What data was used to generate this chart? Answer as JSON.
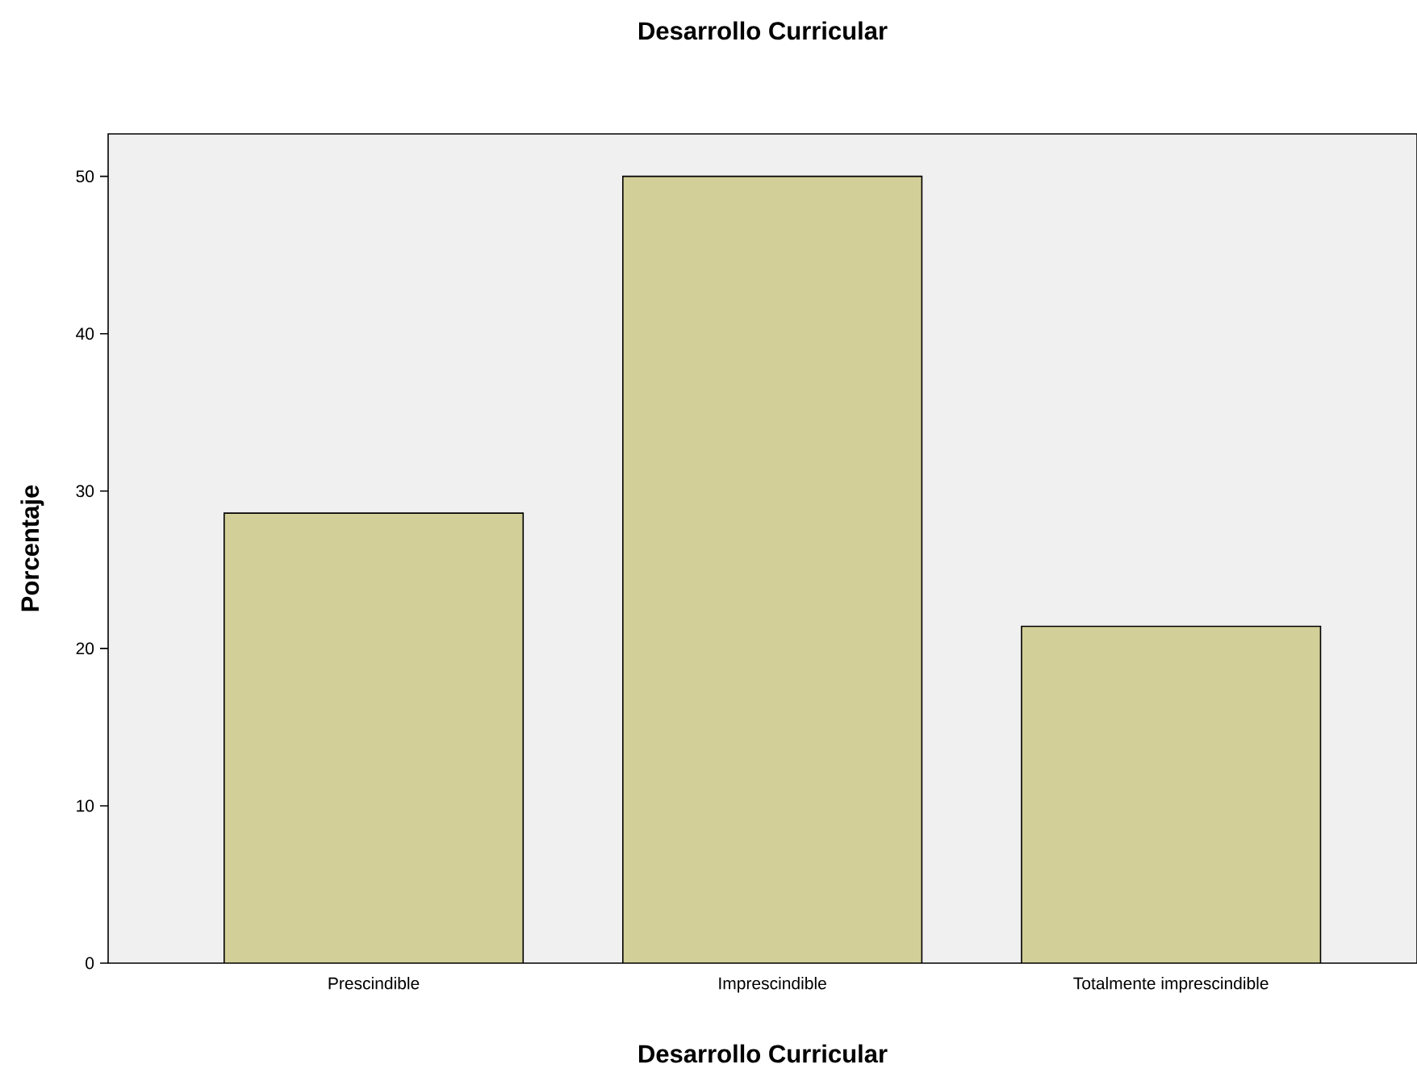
{
  "chart_data": {
    "type": "bar",
    "title": "Desarrollo Curricular",
    "xlabel": "Desarrollo Curricular",
    "ylabel": "Porcentaje",
    "categories": [
      "Prescindible",
      "Imprescindible",
      "Totalmente imprescindible"
    ],
    "values": [
      28.6,
      50,
      21.4
    ],
    "color": "#d3cf98",
    "ylim": [
      0,
      52.7
    ],
    "yticks": [
      0,
      10,
      20,
      30,
      40,
      50
    ]
  }
}
